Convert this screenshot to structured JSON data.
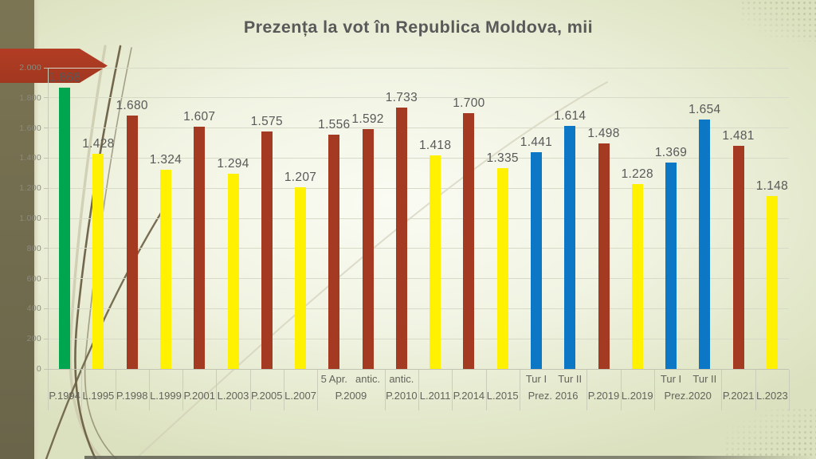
{
  "slide": {
    "title": "Prezența la vot în Republica Moldova, mii"
  },
  "decor": {
    "arrow_shape": "left-banner-arrow",
    "sidebar_color": "#716B4E",
    "arrow_color": "#A83A22",
    "curve_dark_color": "#6B5F44",
    "curve_light_color": "#CDCAAE",
    "background_edge_color": "#DBE1BF",
    "background_center_color": "#FAFBF3",
    "title_color": "#595959",
    "gridline_color": "#D7DAC6",
    "axis_text_color": "#8A8A7C"
  },
  "chart_data": {
    "type": "bar",
    "title": "Prezența la vot în Republica Moldova, mii",
    "ylim": [
      0,
      2000
    ],
    "ytick_interval": 200,
    "ytick_labels": [
      "0",
      "200",
      "400",
      "600",
      "800",
      "1.000",
      "1.200",
      "1.400",
      "1.600",
      "1.800",
      "2.000"
    ],
    "grid": true,
    "legend": false,
    "series_colors": {
      "green": "#00A550",
      "yellow": "#FFF100",
      "red": "#A43A21",
      "blue": "#0B77C5"
    },
    "bars": [
      {
        "group": "P.1994",
        "sub": "",
        "value": 1868,
        "label": "1.868",
        "color": "green"
      },
      {
        "group": "L.1995",
        "sub": "",
        "value": 1428,
        "label": "1.428",
        "color": "yellow"
      },
      {
        "group": "P.1998",
        "sub": "",
        "value": 1680,
        "label": "1.680",
        "color": "red"
      },
      {
        "group": "L.1999",
        "sub": "",
        "value": 1324,
        "label": "1.324",
        "color": "yellow"
      },
      {
        "group": "P.2001",
        "sub": "",
        "value": 1607,
        "label": "1.607",
        "color": "red"
      },
      {
        "group": "L.2003",
        "sub": "",
        "value": 1294,
        "label": "1.294",
        "color": "yellow"
      },
      {
        "group": "P.2005",
        "sub": "",
        "value": 1575,
        "label": "1.575",
        "color": "red"
      },
      {
        "group": "L.2007",
        "sub": "",
        "value": 1207,
        "label": "1.207",
        "color": "yellow"
      },
      {
        "group": "P.2009",
        "sub": "5 Apr.",
        "value": 1556,
        "label": "1.556",
        "color": "red"
      },
      {
        "group": "P.2009",
        "sub": "antic.",
        "value": 1592,
        "label": "1.592",
        "color": "red"
      },
      {
        "group": "P.2010",
        "sub": "antic.",
        "value": 1733,
        "label": "1.733",
        "color": "red"
      },
      {
        "group": "L.2011",
        "sub": "",
        "value": 1418,
        "label": "1.418",
        "color": "yellow"
      },
      {
        "group": "P.2014",
        "sub": "",
        "value": 1700,
        "label": "1.700",
        "color": "red"
      },
      {
        "group": "L.2015",
        "sub": "",
        "value": 1335,
        "label": "1.335",
        "color": "yellow"
      },
      {
        "group": "Prez. 2016",
        "sub": "Tur I",
        "value": 1441,
        "label": "1.441",
        "color": "blue"
      },
      {
        "group": "Prez. 2016",
        "sub": "Tur II",
        "value": 1614,
        "label": "1.614",
        "color": "blue"
      },
      {
        "group": "P.2019",
        "sub": "",
        "value": 1498,
        "label": "1.498",
        "color": "red"
      },
      {
        "group": "L.2019",
        "sub": "",
        "value": 1228,
        "label": "1.228",
        "color": "yellow"
      },
      {
        "group": "Prez.2020",
        "sub": "Tur I",
        "value": 1369,
        "label": "1.369",
        "color": "blue"
      },
      {
        "group": "Prez.2020",
        "sub": "Tur II",
        "value": 1654,
        "label": "1.654",
        "color": "blue"
      },
      {
        "group": "P.2021",
        "sub": "",
        "value": 1481,
        "label": "1.481",
        "color": "red"
      },
      {
        "group": "L.2023",
        "sub": "",
        "value": 1148,
        "label": "1.148",
        "color": "yellow"
      }
    ]
  }
}
